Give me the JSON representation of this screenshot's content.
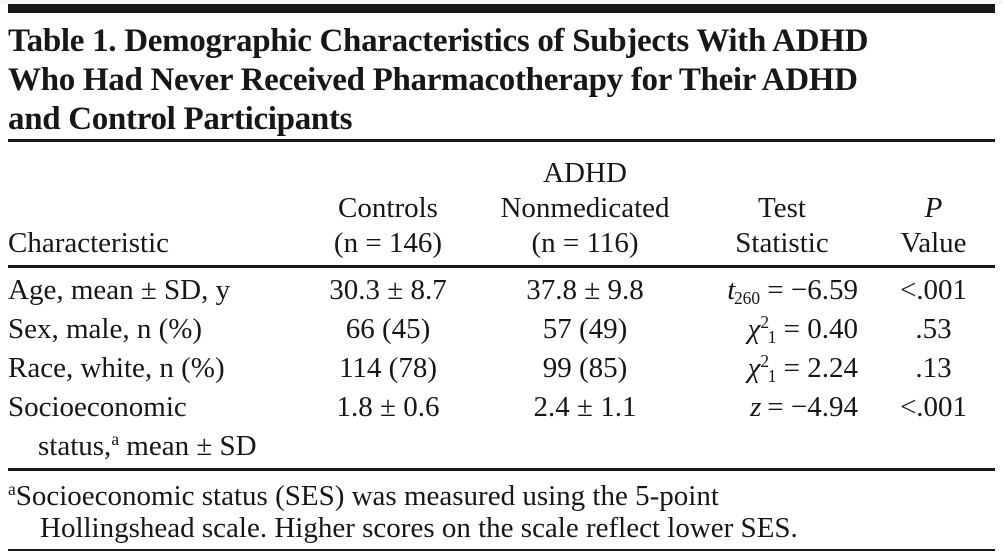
{
  "colors": {
    "text": "#171717",
    "rule": "#171717",
    "background": "#ffffff"
  },
  "title": {
    "lines": [
      "Table 1. Demographic Characteristics of Subjects With ADHD",
      "Who Had Never Received Pharmacotherapy for Their ADHD",
      "and Control Participants"
    ]
  },
  "header": {
    "characteristic": "Characteristic",
    "controls_line1": "Controls",
    "controls_line2": "(n = 146)",
    "adhd_line0": "ADHD",
    "adhd_line1": "Nonmedicated",
    "adhd_line2": "(n = 116)",
    "test_line1": "Test",
    "test_line2": "Statistic",
    "p_line1": "P",
    "p_line2": "Value"
  },
  "rows": [
    {
      "characteristic": "Age, mean ± SD, y",
      "controls": "30.3 ± 8.7",
      "adhd_nonmedicated": "37.8 ± 9.8",
      "stat_letter": "t",
      "stat_sup": "",
      "stat_sub": "260",
      "stat_rest": " = −6.59",
      "p_value": "<.001"
    },
    {
      "characteristic": "Sex, male, n (%)",
      "controls": "66 (45)",
      "adhd_nonmedicated": "57 (49)",
      "stat_letter": "χ",
      "stat_sup": "2",
      "stat_sub": "1",
      "stat_rest": " = 0.40",
      "p_value": ".53"
    },
    {
      "characteristic": "Race, white, n (%)",
      "controls": "114 (78)",
      "adhd_nonmedicated": "99 (85)",
      "stat_letter": "χ",
      "stat_sup": "2",
      "stat_sub": "1",
      "stat_rest": " = 2.24",
      "p_value": ".13"
    },
    {
      "characteristic": "Socioeconomic",
      "char_line2_pre": "status,",
      "char_line2_sup": "a",
      "char_line2_post": " mean ± SD",
      "controls": "1.8 ± 0.6",
      "adhd_nonmedicated": "2.4 ± 1.1",
      "stat_letter": "z",
      "stat_sup": "",
      "stat_sub": "",
      "stat_rest": " = −4.94",
      "p_value": "<.001"
    }
  ],
  "footnote": {
    "marker": "a",
    "line1": "Socioeconomic status (SES) was measured using the 5-point",
    "line2": "Hollingshead scale. Higher scores on the scale reflect lower SES."
  }
}
